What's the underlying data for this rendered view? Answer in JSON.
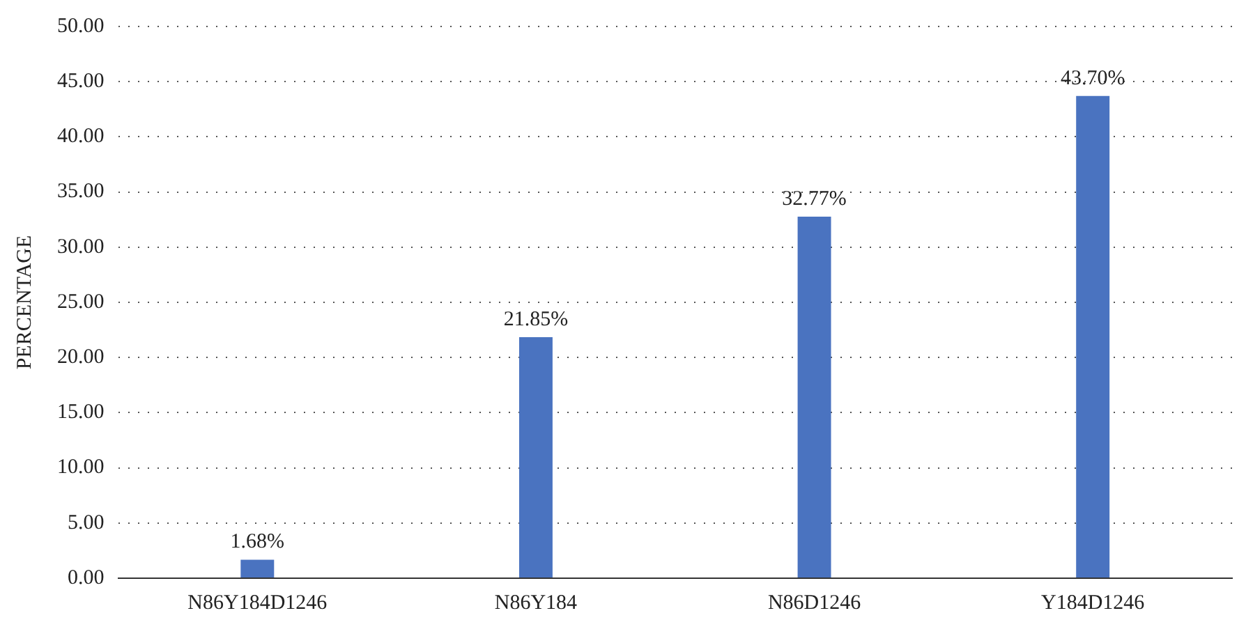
{
  "chart_data": {
    "type": "bar",
    "ylabel": "PERCENTAGE",
    "categories": [
      "N86Y184D1246",
      "N86Y184",
      "N86D1246",
      "Y184D1246"
    ],
    "values": [
      1.68,
      21.85,
      32.77,
      43.7
    ],
    "value_labels": [
      "1.68%",
      "21.85%",
      "32.77%",
      "43.70%"
    ],
    "color": "#4a73c0",
    "ylim": [
      0,
      50
    ],
    "yticks": [
      {
        "value": 0,
        "label": "0.00"
      },
      {
        "value": 5,
        "label": "5.00"
      },
      {
        "value": 10,
        "label": "10.00"
      },
      {
        "value": 15,
        "label": "15.00"
      },
      {
        "value": 20,
        "label": "20.00"
      },
      {
        "value": 25,
        "label": "25.00"
      },
      {
        "value": 30,
        "label": "30.00"
      },
      {
        "value": 35,
        "label": "35.00"
      },
      {
        "value": 40,
        "label": "40.00"
      },
      {
        "value": 45,
        "label": "45.00"
      },
      {
        "value": 50,
        "label": "50.00"
      }
    ],
    "grid": "y",
    "legend": false
  }
}
